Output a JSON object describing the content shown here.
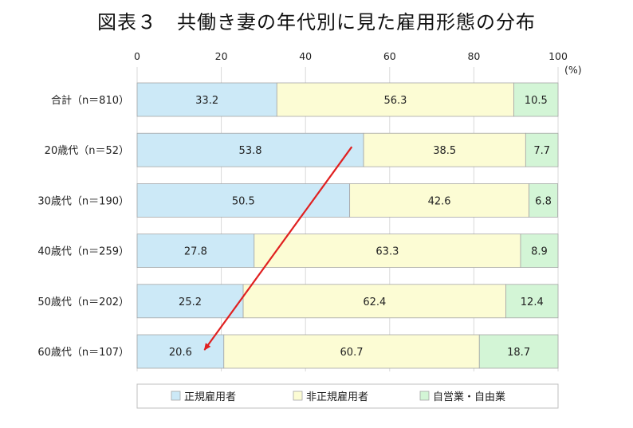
{
  "chart_data": {
    "type": "bar",
    "orientation": "horizontal",
    "stacked": true,
    "title": "図表３　共働き妻の年代別に見た雇用形態の分布",
    "unit_label": "(%)",
    "xlim": [
      0,
      100
    ],
    "xticks": [
      "0",
      "20",
      "40",
      "60",
      "80",
      "100"
    ],
    "grid": true,
    "legend_position": "bottom",
    "categories": [
      "合計（n＝810）",
      "20歳代（n＝52）",
      "30歳代（n＝190）",
      "40歳代（n＝259）",
      "50歳代（n＝202）",
      "60歳代（n＝107）"
    ],
    "series": [
      {
        "name": "正規雇用者",
        "color": "#cce9f7",
        "values": [
          33.2,
          53.8,
          50.5,
          27.8,
          25.2,
          20.6
        ],
        "labels": [
          "33.2",
          "53.8",
          "50.5",
          "27.8",
          "25.2",
          "20.6"
        ]
      },
      {
        "name": "非正規雇用者",
        "color": "#fcfcd4",
        "values": [
          56.3,
          38.5,
          42.6,
          63.3,
          62.4,
          60.7
        ],
        "labels": [
          "56.3",
          "38.5",
          "42.6",
          "63.3",
          "62.4",
          "60.7"
        ]
      },
      {
        "name": "自営業・自由業",
        "color": "#d3f5d6",
        "values": [
          10.5,
          7.7,
          6.8,
          8.9,
          12.4,
          18.7
        ],
        "labels": [
          "10.5",
          "7.7",
          "6.8",
          "8.9",
          "12.4",
          "18.7"
        ]
      }
    ],
    "annotation": {
      "type": "arrow",
      "color": "#e02020",
      "from": {
        "category": "20歳代（n＝52）",
        "x": 51
      },
      "to": {
        "category": "60歳代（n＝107）",
        "x": 16
      }
    }
  }
}
